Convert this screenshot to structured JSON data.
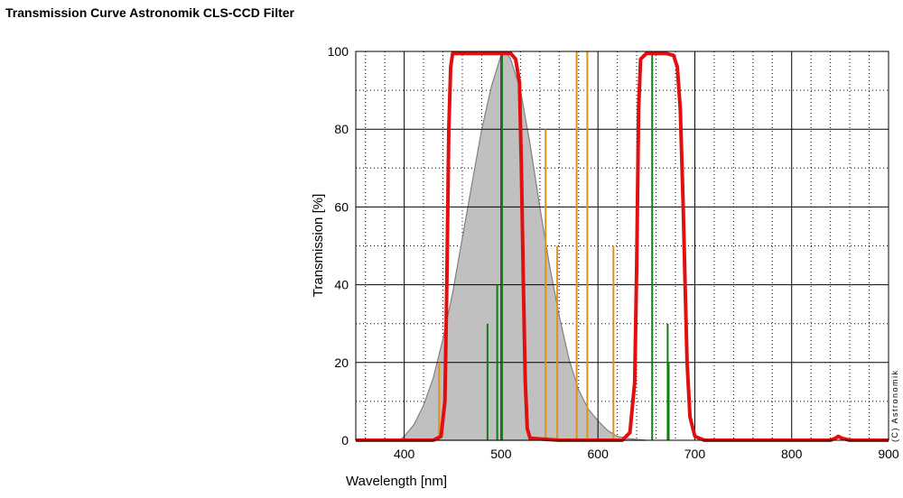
{
  "chart_data": {
    "type": "line",
    "title": "Transmission Curve Astronomik CLS-CCD Filter",
    "xlabel": "Wavelength [nm]",
    "ylabel": "Transmission [%]",
    "xlim": [
      350,
      900
    ],
    "ylim": [
      0,
      100
    ],
    "xticks": [
      400,
      500,
      600,
      700,
      800,
      900
    ],
    "yticks": [
      0,
      20,
      40,
      60,
      80,
      100
    ],
    "grid": true,
    "credit": "(C) Astronomik",
    "series": [
      {
        "kind": "area",
        "color": "#c0c0c0",
        "values_x": [
          350,
          395,
          400,
          410,
          420,
          430,
          440,
          450,
          460,
          470,
          480,
          490,
          500,
          505,
          510,
          520,
          530,
          540,
          550,
          560,
          570,
          580,
          590,
          600,
          610,
          620,
          630,
          640,
          650
        ],
        "values_y": [
          0,
          0,
          1,
          4,
          9,
          16,
          26,
          38,
          52,
          66,
          80,
          91,
          99,
          100,
          98,
          90,
          76,
          60,
          45,
          32,
          21,
          13,
          8,
          5,
          2.5,
          1,
          0.5,
          0.2,
          0
        ]
      },
      {
        "kind": "line",
        "color": "#e01010",
        "values_x": [
          350,
          430,
          438,
          442,
          444,
          446,
          448,
          450,
          460,
          480,
          500,
          510,
          515,
          519,
          521,
          523,
          525,
          527,
          530,
          560,
          600,
          625,
          633,
          638,
          640,
          642,
          644,
          650,
          670,
          678,
          682,
          685,
          688,
          690,
          692,
          695,
          700,
          710,
          840,
          845,
          848,
          852,
          860,
          900
        ],
        "values_y": [
          0,
          0,
          1,
          10,
          40,
          80,
          96,
          99.5,
          99.5,
          99.5,
          99.5,
          99.5,
          98,
          92,
          70,
          40,
          15,
          3,
          0.5,
          0,
          0,
          0,
          2,
          15,
          45,
          85,
          98,
          99.5,
          99.5,
          99,
          96,
          85,
          60,
          40,
          20,
          6,
          1,
          0,
          0,
          0.5,
          1,
          0.5,
          0,
          0
        ]
      }
    ],
    "emission_lines": [
      {
        "color": "#108010",
        "x": 486,
        "y": 30
      },
      {
        "color": "#108010",
        "x": 496,
        "y": 40
      },
      {
        "color": "#108010",
        "x": 501,
        "y": 100
      },
      {
        "color": "#108010",
        "x": 656,
        "y": 100
      },
      {
        "color": "#108010",
        "x": 672,
        "y": 30
      },
      {
        "color": "#108010",
        "x": 673,
        "y": 20
      },
      {
        "color": "#e09020",
        "x": 436,
        "y": 20
      },
      {
        "color": "#e09020",
        "x": 546,
        "y": 80
      },
      {
        "color": "#e09020",
        "x": 558,
        "y": 50
      },
      {
        "color": "#e09020",
        "x": 578,
        "y": 100
      },
      {
        "color": "#e09020",
        "x": 589,
        "y": 100
      },
      {
        "color": "#e09020",
        "x": 616,
        "y": 50
      }
    ]
  }
}
